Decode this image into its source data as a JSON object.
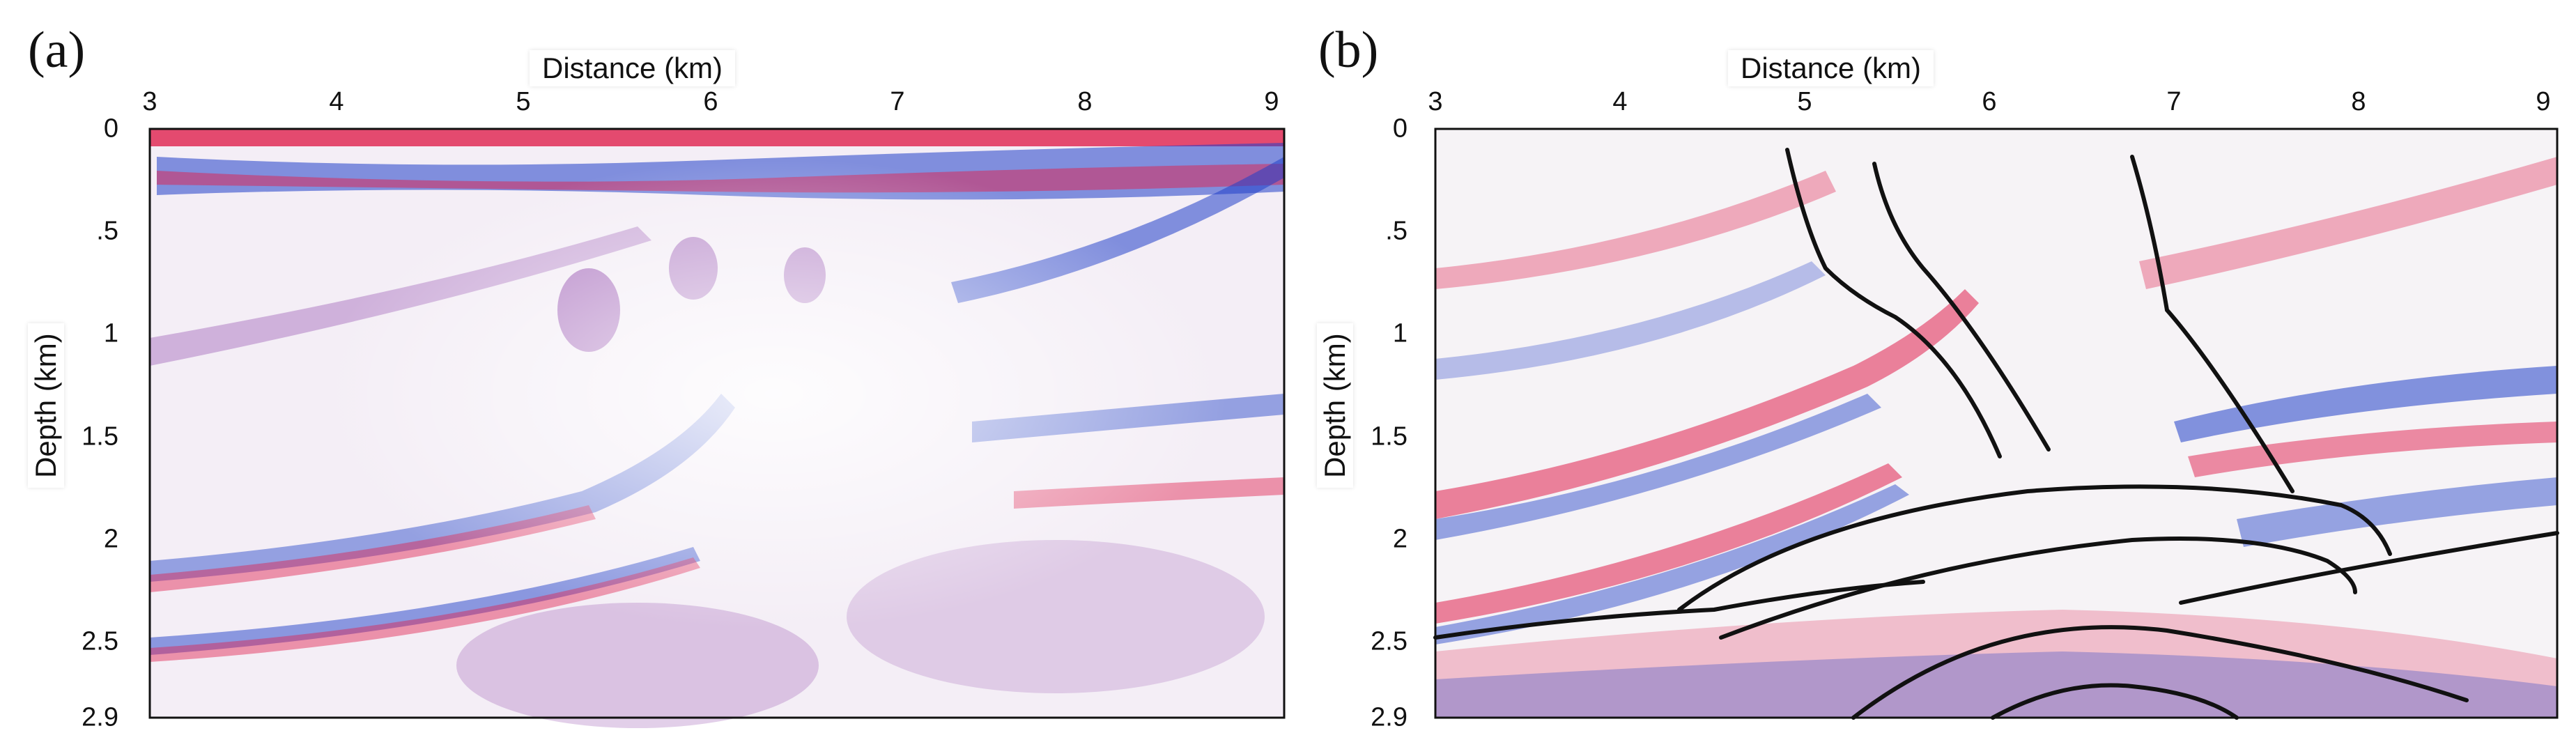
{
  "panels": [
    {
      "letter": "(a)",
      "x_axis_title": "Distance (km)",
      "y_axis_title": "Depth (km)",
      "x_ticks": [
        "3",
        "4",
        "5",
        "6",
        "7",
        "8",
        "9"
      ],
      "y_ticks": [
        "0",
        ".5",
        "1",
        "1.5",
        "2",
        "2.5",
        "2.9"
      ],
      "x_range": [
        3,
        9.1
      ],
      "y_range": [
        0,
        2.9
      ],
      "colors": {
        "positive": "#e0204e",
        "negative": "#2040c8",
        "mix": "#8a3fa8",
        "background": "#f4eef6"
      }
    },
    {
      "letter": "(b)",
      "x_axis_title": "Distance (km)",
      "y_axis_title": "Depth (km)",
      "x_ticks": [
        "3",
        "4",
        "5",
        "6",
        "7",
        "8",
        "9"
      ],
      "y_ticks": [
        "0",
        ".5",
        "1",
        "1.5",
        "2",
        "2.5",
        "2.9"
      ],
      "x_range": [
        3,
        9.1
      ],
      "y_range": [
        0,
        2.9
      ],
      "colors": {
        "positive": "#e0204e",
        "negative": "#2040c8",
        "fault": "#111111",
        "background": "#f6f3f6"
      }
    }
  ]
}
